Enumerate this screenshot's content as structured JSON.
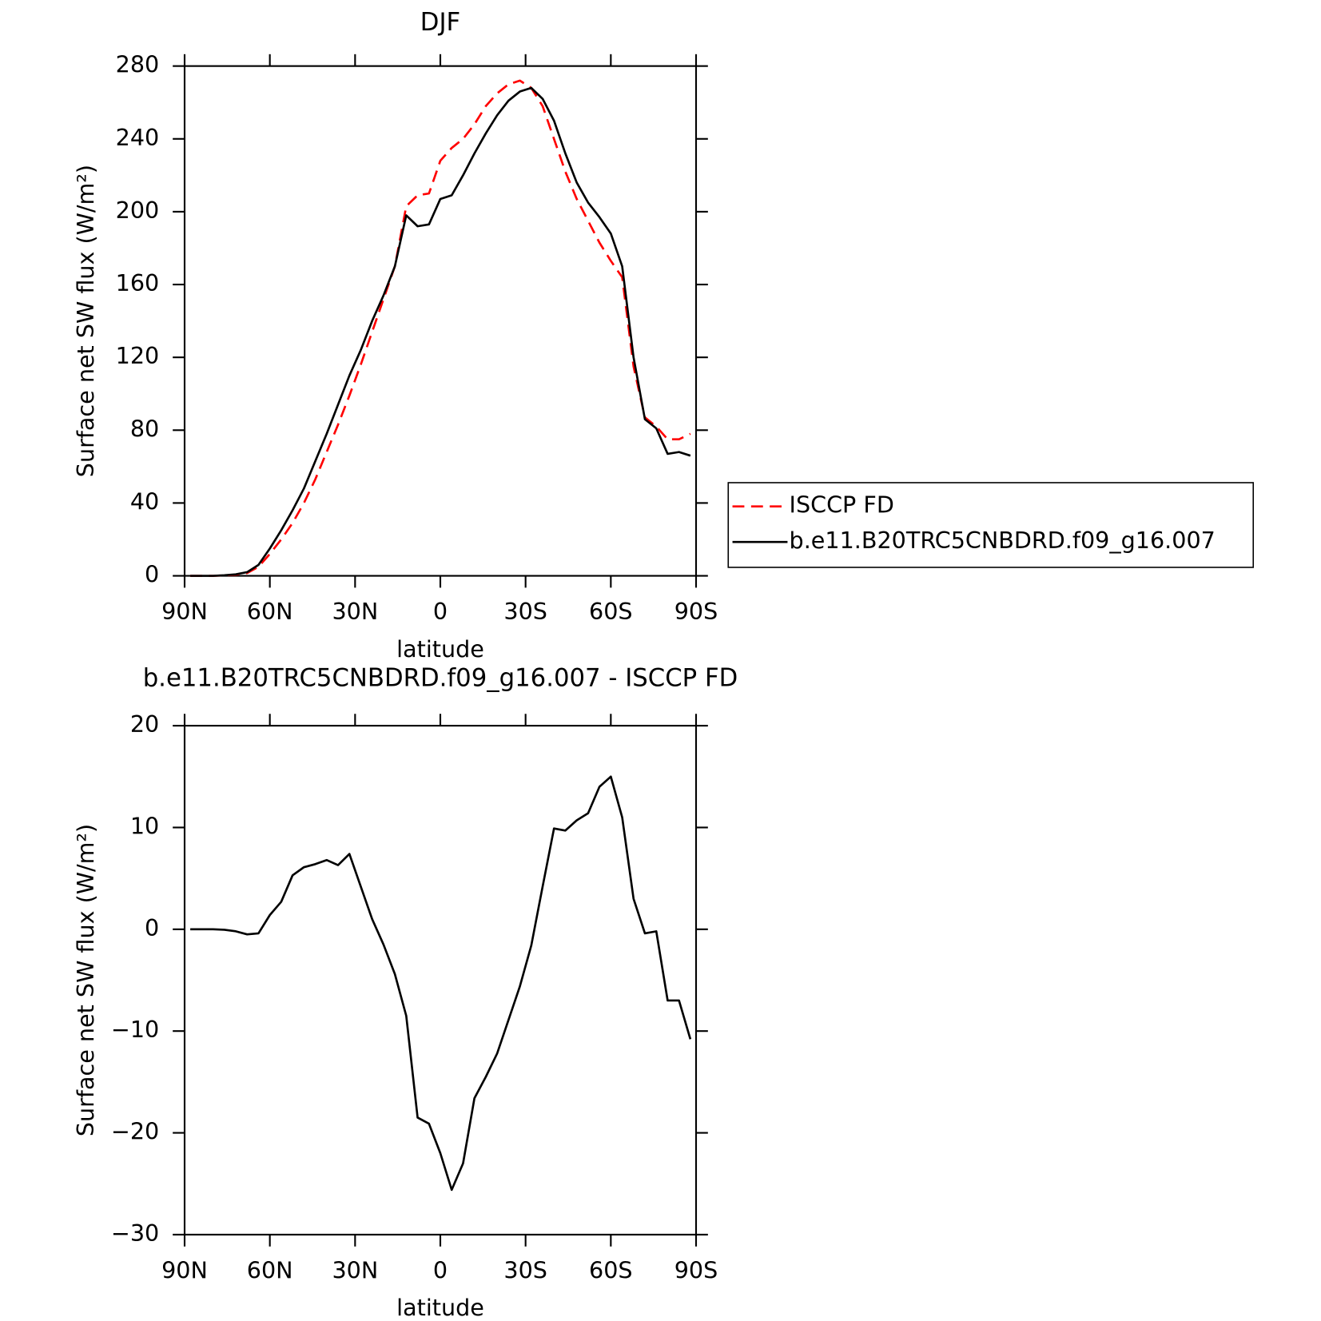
{
  "chart_data": [
    {
      "type": "line",
      "title": "DJF",
      "x_label": "latitude",
      "y_label": "Surface net SW flux (W/m²)",
      "x": [
        88,
        84,
        80,
        76,
        72,
        68,
        64,
        60,
        56,
        52,
        48,
        44,
        40,
        36,
        32,
        28,
        24,
        20,
        16,
        12,
        8,
        4,
        0,
        -4,
        -8,
        -12,
        -16,
        -20,
        -24,
        -28,
        -32,
        -36,
        -40,
        -44,
        -48,
        -52,
        -56,
        -60,
        -64,
        -68,
        -72,
        -76,
        -80,
        -84,
        -88
      ],
      "xlim": [
        90,
        -90
      ],
      "xticks": [
        {
          "value": 90,
          "label": "90N"
        },
        {
          "value": 60,
          "label": "60N"
        },
        {
          "value": 30,
          "label": "30N"
        },
        0,
        {
          "value": -30,
          "label": "30S"
        },
        {
          "value": -60,
          "label": "60S"
        },
        {
          "value": -90,
          "label": "90S"
        }
      ],
      "ylim": [
        0,
        280
      ],
      "yticks": [
        0,
        40,
        80,
        120,
        160,
        200,
        240,
        280
      ],
      "legend": "right",
      "series": [
        {
          "name": "ISCCP FD",
          "color": "#ff0000",
          "dash": true,
          "values": [
            0,
            0,
            0,
            0.2,
            0.6,
            1.5,
            5,
            12,
            20,
            29,
            40,
            53,
            68,
            83,
            99,
            116,
            134,
            152,
            170,
            203,
            209,
            210,
            228,
            235,
            240,
            248,
            258,
            265,
            270,
            272,
            268,
            258,
            240,
            222,
            207,
            195,
            183,
            173,
            164,
            115,
            87,
            82,
            75,
            75,
            78
          ]
        },
        {
          "name": "b.e11.B20TRC5CNBDRD.f09_g16.007",
          "color": "#000000",
          "dash": false,
          "values": [
            0,
            0,
            0,
            0.3,
            0.8,
            2,
            6,
            15,
            25,
            36,
            48,
            63,
            78,
            94,
            110,
            124,
            140,
            154,
            170,
            198,
            192,
            193,
            207,
            209,
            220,
            232,
            243,
            253,
            261,
            266,
            268,
            262,
            250,
            232,
            216,
            205,
            197,
            188,
            170,
            120,
            86,
            81,
            67,
            68,
            66
          ]
        }
      ]
    },
    {
      "type": "line",
      "title": "b.e11.B20TRC5CNBDRD.f09_g16.007 - ISCCP FD",
      "x_label": "latitude",
      "y_label": "Surface net SW flux (W/m²)",
      "x": [
        88,
        84,
        80,
        76,
        72,
        68,
        64,
        60,
        56,
        52,
        48,
        44,
        40,
        36,
        32,
        28,
        24,
        20,
        16,
        12,
        8,
        4,
        0,
        -4,
        -8,
        -12,
        -16,
        -20,
        -24,
        -28,
        -32,
        -36,
        -40,
        -44,
        -48,
        -52,
        -56,
        -60,
        -64,
        -68,
        -72,
        -76,
        -80,
        -84,
        -88
      ],
      "xlim": [
        90,
        -90
      ],
      "xticks": [
        {
          "value": 90,
          "label": "90N"
        },
        {
          "value": 60,
          "label": "60N"
        },
        {
          "value": 30,
          "label": "30N"
        },
        0,
        {
          "value": -30,
          "label": "30S"
        },
        {
          "value": -60,
          "label": "60S"
        },
        {
          "value": -90,
          "label": "90S"
        }
      ],
      "ylim": [
        -30,
        20
      ],
      "yticks": [
        {
          "value": -30,
          "label": "−30"
        },
        {
          "value": -20,
          "label": "−20"
        },
        {
          "value": -10,
          "label": "−10"
        },
        0,
        10,
        20
      ],
      "series": [
        {
          "color": "#000000",
          "dash": false,
          "values": [
            0,
            0,
            0,
            -0.05,
            -0.2,
            -0.5,
            -0.4,
            1.4,
            2.7,
            5.3,
            6.1,
            6.4,
            6.8,
            6.3,
            7.4,
            4.2,
            1,
            -1.5,
            -4.4,
            -8.5,
            -18.5,
            -19.1,
            -22,
            -25.6,
            -23,
            -16.6,
            -14.5,
            -12.2,
            -8.9,
            -5.6,
            -1.6,
            4.2,
            9.9,
            9.7,
            10.7,
            11.4,
            14,
            15,
            11,
            3,
            -0.4,
            -0.2,
            -7,
            -7,
            -10.8
          ]
        }
      ]
    }
  ]
}
